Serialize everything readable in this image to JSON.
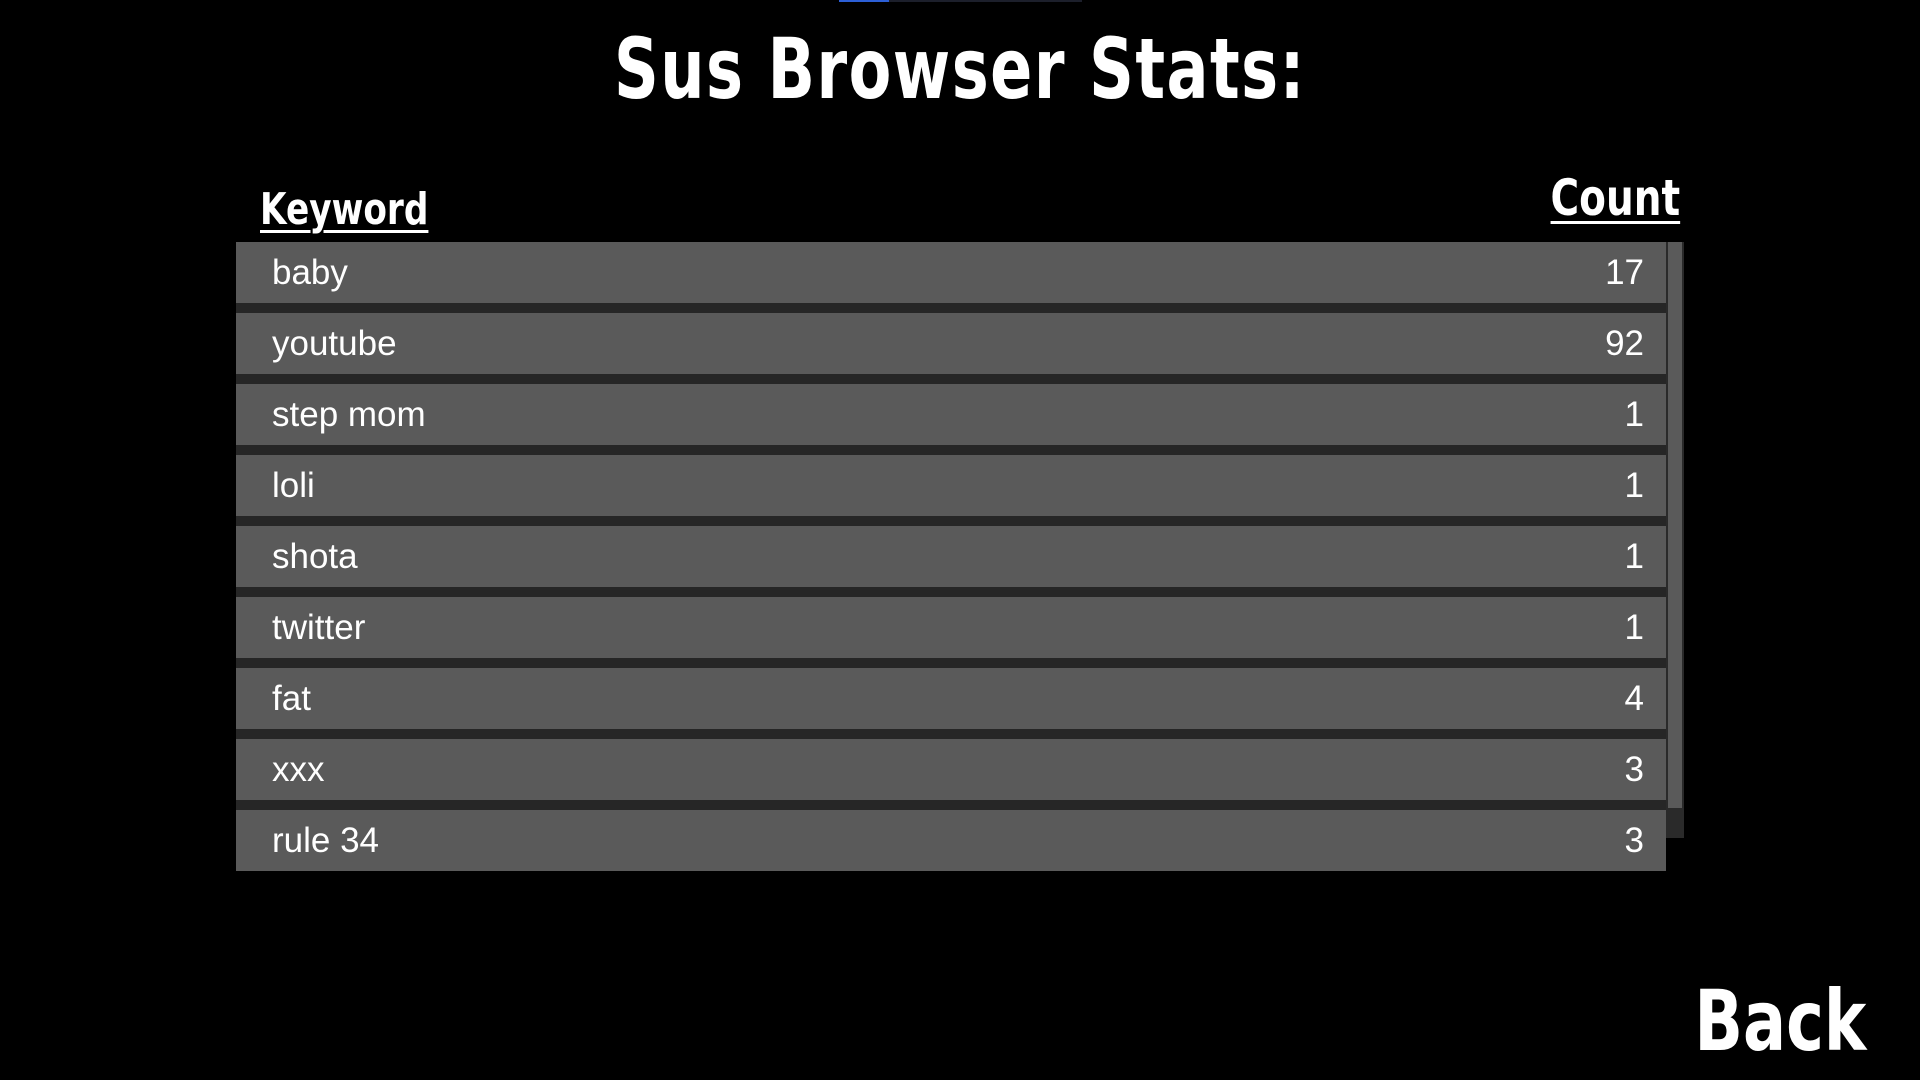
{
  "title": "Sus Browser Stats:",
  "table": {
    "keyword_header": "Keyword",
    "count_header": "Count",
    "rows": [
      {
        "keyword": "baby",
        "count": "17"
      },
      {
        "keyword": "youtube",
        "count": "92"
      },
      {
        "keyword": "step mom",
        "count": "1"
      },
      {
        "keyword": "loli",
        "count": "1"
      },
      {
        "keyword": "shota",
        "count": "1"
      },
      {
        "keyword": "twitter",
        "count": "1"
      },
      {
        "keyword": "fat",
        "count": "4"
      },
      {
        "keyword": "xxx",
        "count": "3"
      },
      {
        "keyword": "rule 34",
        "count": "3"
      }
    ]
  },
  "back_label": "Back",
  "colors": {
    "background": "#000000",
    "row": "#5a5a5a",
    "panel": "#262626",
    "text": "#ffffff"
  }
}
